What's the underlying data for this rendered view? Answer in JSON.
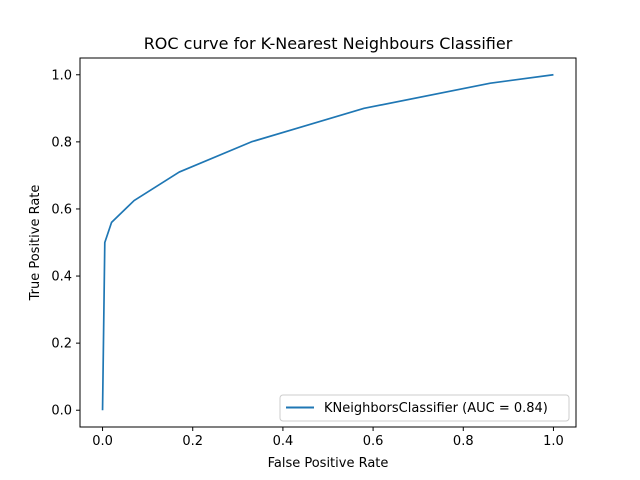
{
  "chart_data": {
    "type": "line",
    "title": "ROC curve for K-Nearest Neighbours Classifier",
    "xlabel": "False Positive Rate",
    "ylabel": "True Positive Rate",
    "xlim": [
      -0.05,
      1.05
    ],
    "ylim": [
      -0.05,
      1.05
    ],
    "xticks": [
      "0.0",
      "0.2",
      "0.4",
      "0.6",
      "0.8",
      "1.0"
    ],
    "yticks": [
      "0.0",
      "0.2",
      "0.4",
      "0.6",
      "0.8",
      "1.0"
    ],
    "grid": false,
    "legend_position": "lower-right",
    "series": [
      {
        "name": "KNeighborsClassifier (AUC = 0.84)",
        "color": "#1f77b4",
        "x": [
          0.0,
          0.005,
          0.02,
          0.07,
          0.17,
          0.33,
          0.58,
          0.86,
          1.0
        ],
        "y": [
          0.0,
          0.5,
          0.56,
          0.625,
          0.71,
          0.8,
          0.9,
          0.975,
          1.0
        ]
      }
    ]
  }
}
